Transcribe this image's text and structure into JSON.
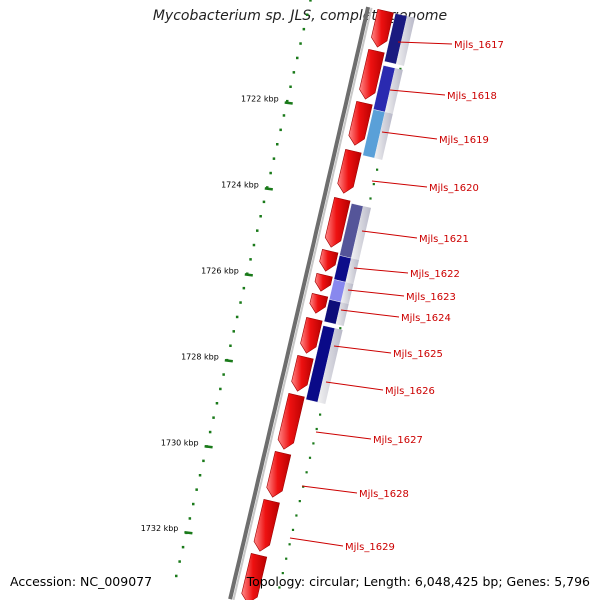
{
  "header": {
    "title": "Mycobacterium sp. JLS, complete genome"
  },
  "footer": {
    "accession": "Accession: NC_009077",
    "summary": "Topology: circular; Length: 6,048,425 bp; Genes: 5,796"
  },
  "map": {
    "colors": {
      "backbone_dark": "#6e6e6e",
      "backbone_light": "#c8c8c8",
      "cds": "#ee1111",
      "cds_highlight": "#ff7777",
      "tick": "#1a7a1a",
      "label": "#cc0000",
      "leader_line": "#cc0000"
    },
    "kbp_ticks": [
      "1722 kbp",
      "1724 kbp",
      "1726 kbp",
      "1728 kbp",
      "1730 kbp",
      "1732 kbp"
    ],
    "genes": [
      {
        "label": "Mjls_1617",
        "shade": "#1a1a80",
        "strand": "reverse"
      },
      {
        "label": "Mjls_1618",
        "shade": "#2a2ab0",
        "strand": "reverse"
      },
      {
        "label": "Mjls_1619",
        "shade": "#5aa0d8",
        "strand": "reverse"
      },
      {
        "label": "Mjls_1620",
        "shade": "#ee1111",
        "strand": "forward"
      },
      {
        "label": "Mjls_1621",
        "shade": "#555599",
        "strand": "reverse"
      },
      {
        "label": "Mjls_1622",
        "shade": "#0d0d8a",
        "strand": "reverse"
      },
      {
        "label": "Mjls_1623",
        "shade": "#8888ee",
        "strand": "reverse"
      },
      {
        "label": "Mjls_1624",
        "shade": "#0d0d7a",
        "strand": "reverse"
      },
      {
        "label": "Mjls_1625",
        "shade": "#0a0a88",
        "strand": "reverse"
      },
      {
        "label": "Mjls_1626",
        "shade": "#0a0a70",
        "strand": "reverse"
      },
      {
        "label": "Mjls_1627",
        "shade": "#ee1111",
        "strand": "forward"
      },
      {
        "label": "Mjls_1628",
        "shade": "#ee1111",
        "strand": "forward"
      },
      {
        "label": "Mjls_1629",
        "shade": "#ee1111",
        "strand": "forward"
      }
    ]
  }
}
